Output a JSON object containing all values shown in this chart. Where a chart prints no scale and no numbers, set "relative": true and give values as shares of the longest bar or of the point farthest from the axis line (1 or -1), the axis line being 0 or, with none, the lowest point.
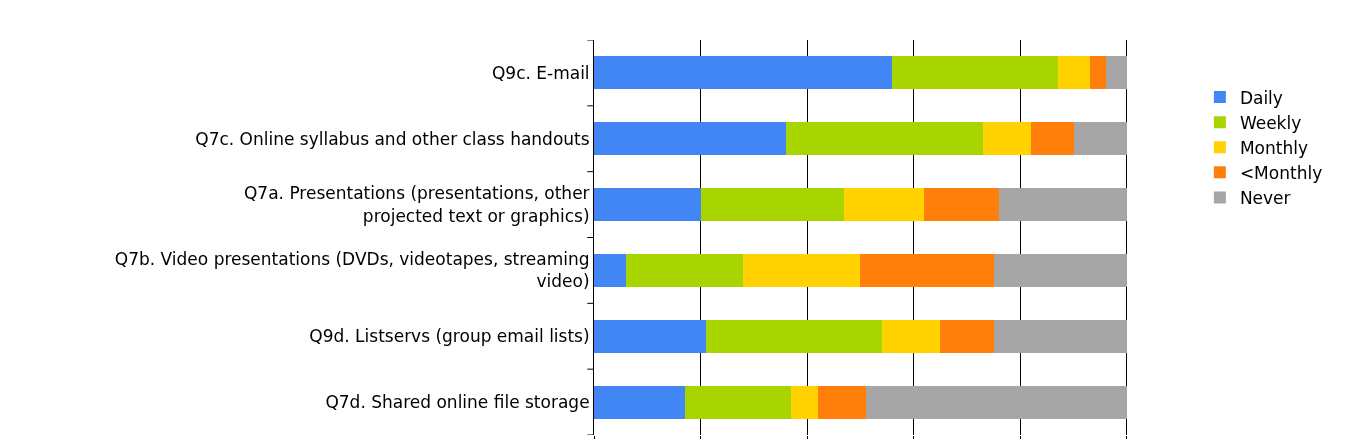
{
  "chart_data": {
    "type": "bar",
    "orientation": "horizontal",
    "stacked": true,
    "relative": true,
    "categories": [
      "Q9c. E-mail",
      "Q7c. Online syllabus and other class handouts",
      "Q7a. Presentations (presentations, other\nprojected text or graphics)",
      "Q7b. Video presentations (DVDs, videotapes, streaming\nvideo)",
      "Q9d. Listservs (group email lists)",
      "Q7d. Shared online file storage"
    ],
    "series": [
      {
        "name": "Daily",
        "color": "#4285f4",
        "values": [
          0.56,
          0.36,
          0.2,
          0.06,
          0.21,
          0.17
        ]
      },
      {
        "name": "Weekly",
        "color": "#a8d400",
        "values": [
          0.31,
          0.37,
          0.27,
          0.22,
          0.33,
          0.2
        ]
      },
      {
        "name": "Monthly",
        "color": "#ffd200",
        "values": [
          0.06,
          0.09,
          0.15,
          0.22,
          0.11,
          0.05
        ]
      },
      {
        "name": "<Monthly",
        "color": "#ff7f0a",
        "values": [
          0.03,
          0.08,
          0.14,
          0.25,
          0.1,
          0.09
        ]
      },
      {
        "name": "Never",
        "color": "#a6a6a6",
        "values": [
          0.04,
          0.1,
          0.24,
          0.25,
          0.25,
          0.49
        ]
      }
    ],
    "grid": "x",
    "legend": "right"
  }
}
